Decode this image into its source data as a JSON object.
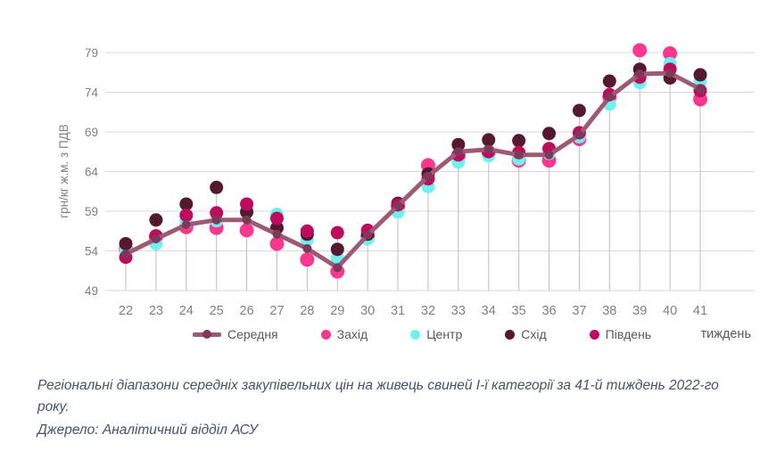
{
  "chart_data": {
    "type": "line",
    "x": [
      22,
      23,
      24,
      25,
      26,
      27,
      28,
      29,
      30,
      31,
      32,
      33,
      34,
      35,
      36,
      37,
      38,
      39,
      40,
      41
    ],
    "xlabel": "тиждень",
    "ylabel": "грн/кг ж.м. з ПДВ",
    "ylim": [
      49,
      79
    ],
    "yticks": [
      49,
      54,
      59,
      64,
      69,
      74,
      79
    ],
    "grid": "horizontal-gridlines-plus-vertical-droplines-to-weekly-max",
    "legend_position": "bottom",
    "series": [
      {
        "name": "Середня",
        "type": "line",
        "color": "#9E5A74",
        "marker_color": "#7C3A58",
        "values": [
          53.6,
          55.5,
          57.3,
          57.9,
          57.9,
          56.1,
          54.3,
          51.9,
          56.0,
          59.7,
          63.4,
          66.5,
          66.8,
          66.1,
          66.1,
          68.6,
          73.4,
          76.3,
          76.4,
          74.4
        ]
      },
      {
        "name": "Захід",
        "type": "scatter",
        "color": "#F9388E",
        "values": [
          54.2,
          55.8,
          57.0,
          56.9,
          56.6,
          54.9,
          52.9,
          51.4,
          55.8,
          59.6,
          64.8,
          66.0,
          66.4,
          65.4,
          65.4,
          68.1,
          73.4,
          79.3,
          78.9,
          73.1
        ]
      },
      {
        "name": "Центр",
        "type": "scatter",
        "color": "#6FF2EF",
        "values": [
          54.1,
          54.9,
          57.6,
          57.8,
          59.0,
          58.6,
          55.4,
          53.1,
          55.5,
          58.9,
          62.1,
          65.2,
          66.0,
          65.6,
          66.3,
          68.4,
          72.5,
          75.2,
          77.6,
          75.4
        ]
      },
      {
        "name": "Схід",
        "type": "scatter",
        "color": "#54182F",
        "values": [
          54.9,
          57.9,
          59.9,
          62.0,
          58.9,
          56.9,
          56.1,
          54.2,
          56.1,
          60.0,
          63.7,
          67.4,
          68.0,
          67.9,
          68.8,
          71.7,
          75.4,
          76.9,
          75.8,
          76.2
        ]
      },
      {
        "name": "Південь",
        "type": "scatter",
        "color": "#BE0B5C",
        "values": [
          53.2,
          55.9,
          58.5,
          58.8,
          59.9,
          58.1,
          56.5,
          56.3,
          56.6,
          59.8,
          63.1,
          66.1,
          66.5,
          66.4,
          66.9,
          68.9,
          73.7,
          75.9,
          76.9,
          74.2
        ]
      }
    ],
    "colors": {
      "gridline": "#D9D9D9",
      "dropline": "#BFBFBF",
      "tick_text": "#808080",
      "legend_text": "#595959",
      "caption_text": "#44546A"
    }
  },
  "caption": {
    "text": "Регіональні діапазони середніх закупівельних цін на живець свиней І-ї категорії за 41-й тиждень 2022-го року.",
    "source": "Джерело: Аналітичний відділ АСУ"
  }
}
